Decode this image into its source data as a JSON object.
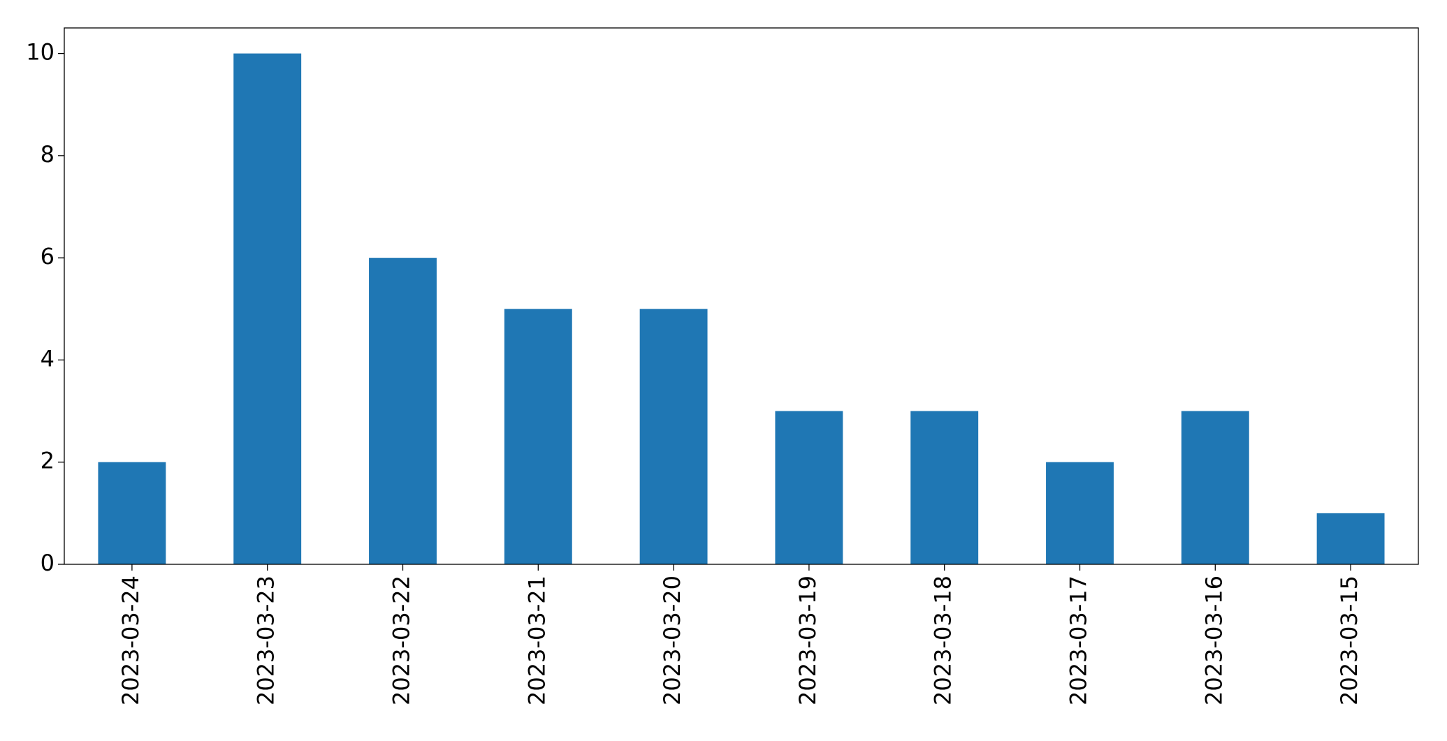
{
  "chart_data": {
    "type": "bar",
    "categories": [
      "2023-03-24",
      "2023-03-23",
      "2023-03-22",
      "2023-03-21",
      "2023-03-20",
      "2023-03-19",
      "2023-03-18",
      "2023-03-17",
      "2023-03-16",
      "2023-03-15"
    ],
    "values": [
      2,
      10,
      6,
      5,
      5,
      3,
      3,
      2,
      3,
      1
    ],
    "color": "#1f77b4",
    "ylim": [
      0,
      10.5
    ],
    "yticks": [
      0,
      2,
      4,
      6,
      8,
      10
    ],
    "grid": false
  }
}
